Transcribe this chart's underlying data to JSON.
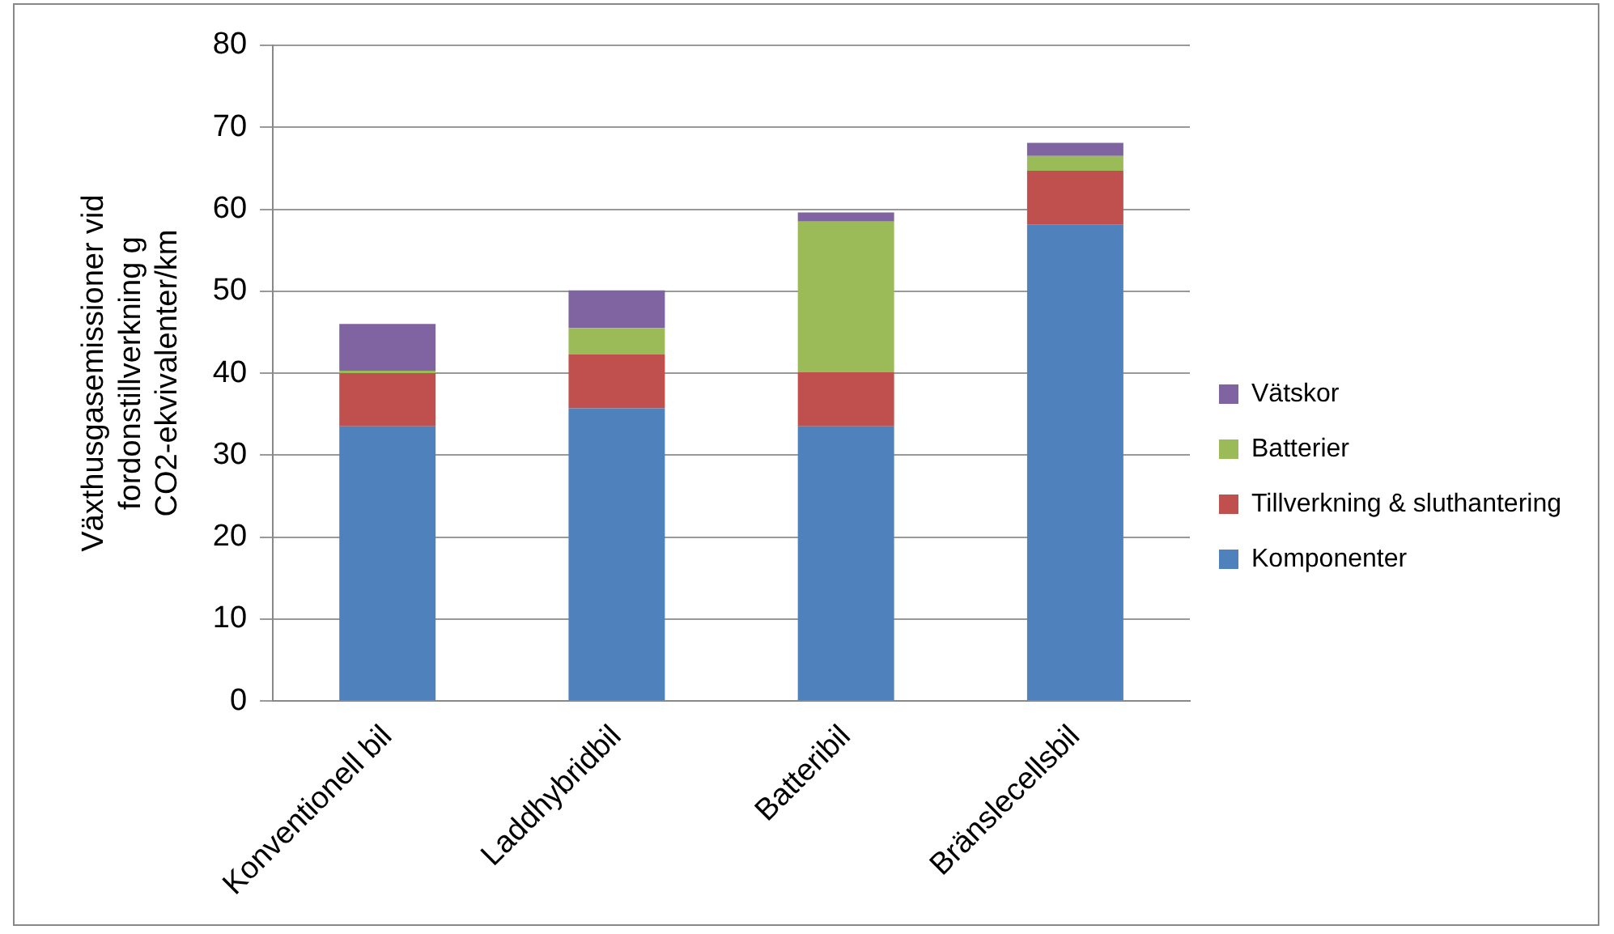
{
  "chart_data": {
    "type": "bar",
    "stacked": true,
    "ylabel": "Växthusgasemissioner vid fordonstillverkning g CO2-ekvivalenter/km",
    "categories": [
      "Konventionell bil",
      "Laddhybridbil",
      "Batteribil",
      "Bränslecellsbil"
    ],
    "series": [
      {
        "name": "Komponenter",
        "color": "#4f81bd",
        "values": [
          33.5,
          35.7,
          33.5,
          58.1
        ]
      },
      {
        "name": "Tillverkning & sluthantering",
        "color": "#c0504d",
        "values": [
          6.5,
          6.6,
          6.6,
          6.6
        ]
      },
      {
        "name": "Batterier",
        "color": "#9bbb59",
        "values": [
          0.3,
          3.2,
          18.4,
          1.8
        ]
      },
      {
        "name": "Vätskor",
        "color": "#8064a2",
        "values": [
          5.7,
          4.6,
          1.1,
          1.6
        ]
      }
    ],
    "ylim": [
      0,
      80
    ],
    "yticks": [
      0,
      10,
      20,
      30,
      40,
      50,
      60,
      70,
      80
    ],
    "grid": "y",
    "legend": "right"
  }
}
